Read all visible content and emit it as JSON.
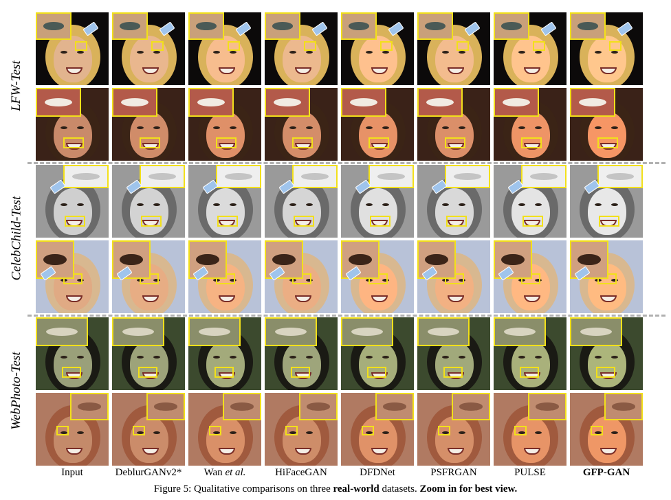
{
  "columns": [
    "Input",
    "DeblurGANv2*",
    "Wan et al.",
    "HiFaceGAN",
    "DFDNet",
    "PSFRGAN",
    "PULSE",
    "GFP-GAN"
  ],
  "column_wan_prefix": "Wan ",
  "column_wan_italic": "et al.",
  "groups": [
    {
      "label": "LFW-Test"
    },
    {
      "label": "CelebChild-Test"
    },
    {
      "label": "WebPhoto-Test"
    }
  ],
  "caption": {
    "prefix": "Figure 5: Qualitative comparisons on three ",
    "bold_1": "real-world",
    "middle": " datasets. ",
    "bold_2": "Zoom in for best view."
  },
  "colors": {
    "zoom_box": "#f2e01a",
    "separator": "#b0b0b0",
    "arrow": "#9fc4ec"
  }
}
